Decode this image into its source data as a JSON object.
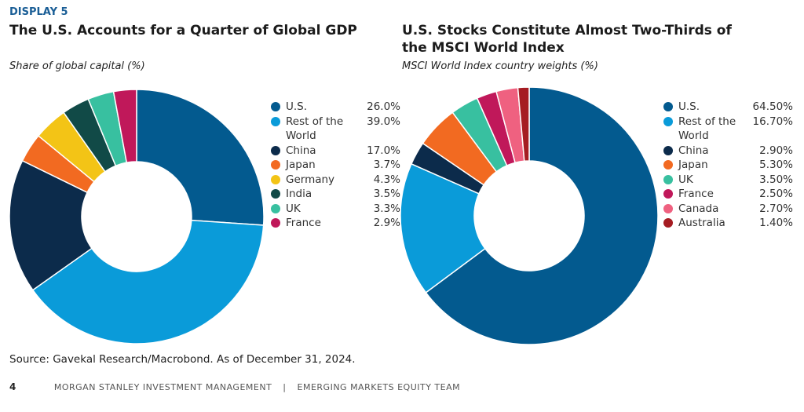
{
  "display_label": "DISPLAY 5",
  "source": "Source: Gavekal Research/Macrobond. As of December 31, 2024.",
  "footer": {
    "page": "4",
    "org": "MORGAN STANLEY INVESTMENT MANAGEMENT",
    "sep": "|",
    "team": "EMERGING MARKETS EQUITY TEAM"
  },
  "chart_data": [
    {
      "type": "pie",
      "title": "The U.S. Accounts for a Quarter of Global GDP",
      "subtitle": "Share of global capital (%)",
      "legend_position": "right",
      "slices": [
        {
          "label": "U.S.",
          "value": 26.0,
          "display": "26.0%",
          "color": "#035a8f"
        },
        {
          "label": "Rest of the World",
          "value": 39.0,
          "display": "39.0%",
          "color": "#0a9bd9"
        },
        {
          "label": "China",
          "value": 17.0,
          "display": "17.0%",
          "color": "#0c2b4b"
        },
        {
          "label": "Japan",
          "value": 3.7,
          "display": "3.7%",
          "color": "#f26a21"
        },
        {
          "label": "Germany",
          "value": 4.3,
          "display": "4.3%",
          "color": "#f3c416"
        },
        {
          "label": "India",
          "value": 3.5,
          "display": "3.5%",
          "color": "#114a47"
        },
        {
          "label": "UK",
          "value": 3.3,
          "display": "3.3%",
          "color": "#38c0a0"
        },
        {
          "label": "France",
          "value": 2.9,
          "display": "2.9%",
          "color": "#c0185a"
        }
      ]
    },
    {
      "type": "pie",
      "title": "U.S. Stocks Constitute Almost Two-Thirds of the MSCI World Index",
      "subtitle": "MSCI World Index country weights (%)",
      "legend_position": "right",
      "slices": [
        {
          "label": "U.S.",
          "value": 64.5,
          "display": "64.50%",
          "color": "#035a8f"
        },
        {
          "label": "Rest of the World",
          "value": 16.7,
          "display": "16.70%",
          "color": "#0a9bd9"
        },
        {
          "label": "China",
          "value": 2.9,
          "display": "2.90%",
          "color": "#0c2b4b"
        },
        {
          "label": "Japan",
          "value": 5.3,
          "display": "5.30%",
          "color": "#f26a21"
        },
        {
          "label": "UK",
          "value": 3.5,
          "display": "3.50%",
          "color": "#38c0a0"
        },
        {
          "label": "France",
          "value": 2.5,
          "display": "2.50%",
          "color": "#c0185a"
        },
        {
          "label": "Canada",
          "value": 2.7,
          "display": "2.70%",
          "color": "#ef6180"
        },
        {
          "label": "Australia",
          "value": 1.4,
          "display": "1.40%",
          "color": "#a51c22"
        }
      ]
    }
  ]
}
